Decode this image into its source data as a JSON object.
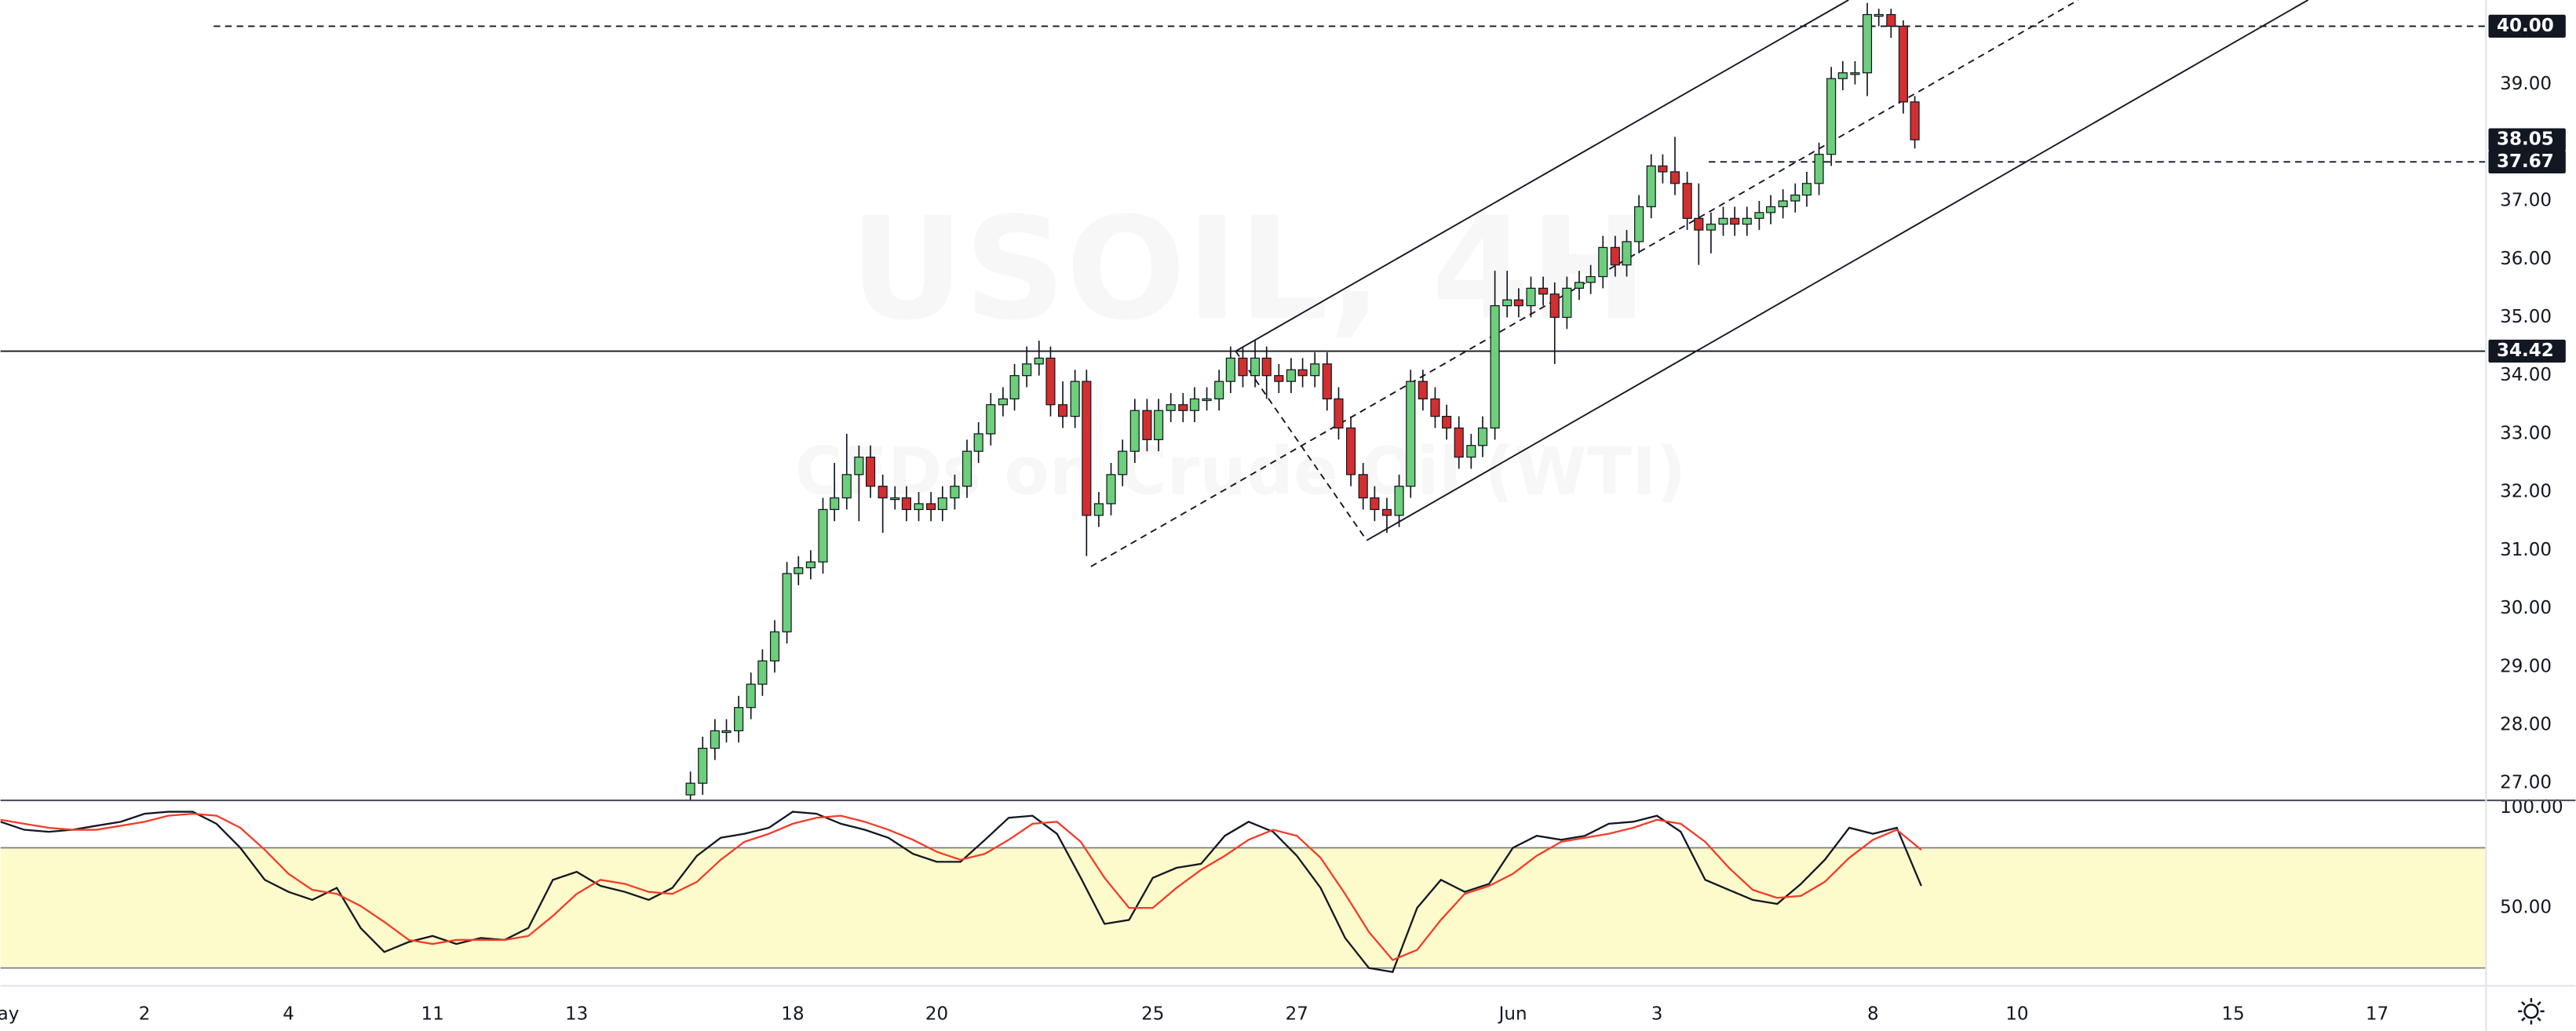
{
  "chart_data": [
    {
      "type": "candlestick",
      "watermark_title": "USOIL, 4H",
      "watermark_subtitle": "CFDs on Crude Oil (WTI)",
      "up_color": "#6ccf7b",
      "down_color": "#d32f2f",
      "x": [
        9.58,
        9.75,
        9.92,
        10.08,
        10.25,
        10.42,
        10.58,
        10.75,
        10.92,
        11.08,
        11.25,
        11.42,
        11.58,
        11.75,
        11.92,
        12.08,
        12.25,
        12.42,
        12.58,
        12.75,
        12.92,
        13.08,
        13.25,
        13.42,
        13.58,
        13.75,
        13.92,
        14.08,
        14.25,
        14.42,
        14.58,
        14.75,
        14.92,
        15.08,
        15.25,
        15.42,
        15.58,
        15.75,
        15.92,
        16.08,
        16.25,
        16.42,
        16.58,
        16.75,
        16.92,
        17.08,
        17.25,
        17.42,
        17.58,
        17.75,
        17.92,
        18.08,
        18.25,
        18.42,
        18.58,
        18.75,
        18.92,
        19.08,
        19.25,
        19.42,
        19.58,
        19.75,
        19.92,
        20.08,
        20.25,
        20.42,
        20.58,
        20.75,
        20.92,
        21.08,
        21.25,
        21.42,
        21.58,
        21.75,
        21.92,
        22.08,
        22.25,
        22.42,
        22.58,
        22.75,
        22.92,
        23.08,
        23.25,
        23.42,
        23.58,
        23.75,
        23.92,
        24.08,
        24.25,
        24.42,
        24.58,
        24.75,
        24.92,
        25.08,
        25.25,
        25.42,
        25.58,
        25.75,
        25.92,
        26.08,
        26.25,
        26.42,
        26.58
      ],
      "open": [
        26.8,
        27.0,
        27.6,
        27.9,
        27.9,
        28.3,
        28.7,
        29.1,
        29.6,
        30.6,
        30.7,
        30.8,
        31.7,
        31.9,
        32.3,
        32.6,
        32.1,
        31.9,
        31.9,
        31.7,
        31.8,
        31.7,
        31.9,
        32.1,
        32.7,
        33.0,
        33.5,
        33.6,
        34.0,
        34.2,
        34.3,
        33.5,
        33.3,
        33.9,
        31.6,
        31.8,
        32.3,
        32.7,
        33.4,
        32.9,
        33.4,
        33.5,
        33.4,
        33.6,
        33.6,
        33.9,
        34.3,
        34.0,
        34.3,
        34.0,
        33.9,
        34.1,
        34.0,
        34.2,
        33.6,
        33.1,
        32.3,
        31.9,
        31.7,
        31.6,
        32.1,
        33.9,
        33.6,
        33.3,
        33.1,
        32.6,
        32.8,
        33.1,
        35.2,
        35.3,
        35.2,
        35.5,
        35.4,
        35.0,
        35.5,
        35.6,
        35.7,
        36.2,
        35.9,
        36.3,
        36.9,
        37.6,
        37.5,
        37.3,
        36.7,
        36.5,
        36.6,
        36.7,
        36.6,
        36.7,
        36.8,
        36.9,
        37.0,
        37.1,
        37.3,
        37.8,
        39.1,
        39.2,
        39.2,
        40.2,
        40.2,
        40.0,
        38.7
      ],
      "high": [
        27.2,
        27.8,
        28.1,
        28.1,
        28.5,
        28.9,
        29.3,
        29.8,
        30.8,
        30.9,
        31.0,
        31.9,
        32.5,
        33.0,
        32.8,
        32.8,
        32.3,
        32.1,
        32.1,
        32.0,
        32.0,
        32.1,
        32.3,
        32.9,
        33.2,
        33.7,
        33.8,
        34.2,
        34.5,
        34.6,
        34.5,
        33.9,
        34.1,
        34.1,
        32.0,
        32.5,
        32.9,
        33.6,
        33.6,
        33.6,
        33.7,
        33.7,
        33.8,
        33.8,
        34.1,
        34.5,
        34.5,
        34.6,
        34.5,
        34.2,
        34.3,
        34.3,
        34.4,
        34.4,
        33.8,
        33.3,
        32.5,
        32.1,
        31.9,
        32.3,
        34.1,
        34.1,
        33.8,
        33.5,
        33.3,
        33.0,
        33.3,
        35.8,
        35.8,
        35.5,
        35.7,
        35.7,
        35.6,
        35.7,
        35.8,
        35.9,
        36.4,
        36.4,
        36.5,
        37.1,
        37.8,
        37.8,
        38.1,
        37.5,
        37.3,
        36.8,
        36.9,
        36.9,
        36.9,
        37.0,
        37.1,
        37.2,
        37.3,
        37.5,
        38.0,
        39.3,
        39.4,
        39.4,
        40.4,
        40.3,
        40.3,
        40.1,
        38.8
      ],
      "low": [
        26.6,
        26.8,
        27.4,
        27.7,
        27.7,
        28.1,
        28.5,
        28.9,
        29.4,
        30.4,
        30.5,
        30.6,
        31.5,
        31.7,
        31.5,
        31.9,
        31.3,
        31.7,
        31.5,
        31.5,
        31.5,
        31.5,
        31.7,
        31.9,
        32.5,
        32.8,
        33.3,
        33.4,
        33.8,
        34.0,
        33.3,
        33.1,
        33.1,
        30.9,
        31.4,
        31.6,
        32.1,
        32.5,
        32.7,
        32.7,
        33.2,
        33.2,
        33.2,
        33.4,
        33.4,
        33.7,
        33.8,
        33.8,
        33.6,
        33.7,
        33.7,
        33.8,
        33.8,
        33.4,
        32.9,
        32.1,
        31.7,
        31.5,
        31.3,
        31.4,
        31.9,
        33.4,
        33.1,
        32.9,
        32.4,
        32.4,
        32.6,
        32.9,
        35.0,
        35.0,
        35.0,
        35.2,
        34.2,
        34.8,
        35.3,
        35.4,
        35.5,
        35.7,
        35.7,
        36.1,
        36.7,
        37.3,
        37.1,
        36.5,
        35.9,
        36.1,
        36.4,
        36.4,
        36.4,
        36.5,
        36.6,
        36.7,
        36.8,
        36.9,
        37.1,
        37.6,
        38.9,
        39.0,
        38.8,
        40.0,
        39.8,
        38.5,
        37.9
      ],
      "close": [
        27.0,
        27.6,
        27.9,
        27.9,
        28.3,
        28.7,
        29.1,
        29.6,
        30.6,
        30.7,
        30.8,
        31.7,
        31.9,
        32.3,
        32.6,
        32.1,
        31.9,
        31.9,
        31.7,
        31.8,
        31.7,
        31.9,
        32.1,
        32.7,
        33.0,
        33.5,
        33.6,
        34.0,
        34.2,
        34.3,
        33.5,
        33.3,
        33.9,
        31.6,
        31.8,
        32.3,
        32.7,
        33.4,
        32.9,
        33.4,
        33.5,
        33.4,
        33.6,
        33.6,
        33.9,
        34.3,
        34.0,
        34.3,
        34.0,
        33.9,
        34.1,
        34.0,
        34.2,
        33.6,
        33.1,
        32.3,
        31.9,
        31.7,
        31.6,
        32.1,
        33.9,
        33.6,
        33.3,
        33.1,
        32.6,
        32.8,
        33.1,
        35.2,
        35.3,
        35.2,
        35.5,
        35.4,
        35.0,
        35.5,
        35.6,
        35.7,
        36.2,
        35.9,
        36.3,
        36.9,
        37.6,
        37.5,
        37.3,
        36.7,
        36.5,
        36.6,
        36.7,
        36.6,
        36.7,
        36.8,
        36.9,
        37.0,
        37.1,
        37.3,
        37.8,
        39.1,
        39.2,
        39.2,
        40.2,
        40.2,
        40.0,
        38.7,
        38.05
      ],
      "xlim": [
        0,
        34.5
      ],
      "ylim": [
        26.72,
        40.45
      ],
      "yticks": [
        {
          "value": 27,
          "label": "27.00"
        },
        {
          "value": 28,
          "label": "28.00"
        },
        {
          "value": 29,
          "label": "29.00"
        },
        {
          "value": 30,
          "label": "30.00"
        },
        {
          "value": 31,
          "label": "31.00"
        },
        {
          "value": 32,
          "label": "32.00"
        },
        {
          "value": 33,
          "label": "33.00"
        },
        {
          "value": 34,
          "label": "34.00"
        },
        {
          "value": 35,
          "label": "35.00"
        },
        {
          "value": 36,
          "label": "36.00"
        },
        {
          "value": 37,
          "label": "37.00"
        },
        {
          "value": 39,
          "label": "39.00"
        }
      ],
      "price_labels": [
        {
          "value": 40,
          "label": "40.00"
        },
        {
          "value": 38.05,
          "label": "38.05"
        },
        {
          "value": 37.67,
          "label": "37.67"
        },
        {
          "value": 34.42,
          "label": "34.42"
        }
      ],
      "drawings": [
        {
          "points": [
            [
              2.96,
              40
            ],
            [
              34.5,
              40
            ]
          ],
          "style": "dashed"
        },
        {
          "points": [
            [
              23.72,
              37.67
            ],
            [
              34.5,
              37.67
            ]
          ],
          "style": "dashed"
        },
        {
          "points": [
            [
              0,
              34.42
            ],
            [
              34.5,
              34.42
            ]
          ],
          "style": "solid"
        },
        {
          "points": [
            [
              17.15,
              34.42
            ],
            [
              25.66,
              40.45
            ]
          ],
          "style": "solid"
        },
        {
          "points": [
            [
              15.14,
              30.72
            ],
            [
              28.85,
              40.45
            ]
          ],
          "style": "dashed"
        },
        {
          "points": [
            [
              18.97,
              31.17
            ],
            [
              32.04,
              40.45
            ]
          ],
          "style": "solid"
        },
        {
          "points": [
            [
              17.15,
              34.42
            ],
            [
              18.97,
              31.17
            ]
          ],
          "style": "dashed"
        }
      ]
    },
    {
      "type": "line",
      "x": [
        0,
        0.33,
        0.67,
        1,
        1.33,
        1.67,
        2,
        2.33,
        2.67,
        3,
        3.33,
        3.67,
        4,
        4.33,
        4.67,
        5,
        5.33,
        5.67,
        6,
        6.33,
        6.67,
        7,
        7.33,
        7.67,
        8,
        8.33,
        8.67,
        9,
        9.33,
        9.67,
        10,
        10.33,
        10.67,
        11,
        11.33,
        11.67,
        12,
        12.33,
        12.67,
        13,
        13.33,
        13.67,
        14,
        14.33,
        14.67,
        15,
        15.33,
        15.67,
        16,
        16.33,
        16.67,
        17,
        17.33,
        17.67,
        18,
        18.33,
        18.67,
        19,
        19.33,
        19.67,
        20,
        20.33,
        20.67,
        21,
        21.33,
        21.67,
        22,
        22.33,
        22.67,
        23,
        23.33,
        23.67,
        24,
        24.33,
        24.67,
        25,
        25.33,
        25.67,
        26,
        26.33,
        26.67
      ],
      "series": [
        {
          "color": "#131722",
          "values": [
            93,
            89,
            88,
            89,
            91,
            93,
            97,
            98,
            98,
            92,
            80,
            64,
            58,
            54,
            60,
            40,
            28,
            33,
            36,
            32,
            35,
            34,
            40,
            64,
            68,
            61,
            58,
            54,
            60,
            76,
            85,
            87,
            90,
            98,
            97,
            92,
            89,
            85,
            77,
            73,
            73,
            84,
            95,
            96,
            87,
            65,
            42,
            44,
            65,
            70,
            72,
            86,
            93,
            88,
            76,
            60,
            35,
            20,
            18,
            50,
            64,
            58,
            62,
            80,
            86,
            84,
            86,
            92,
            93,
            96,
            88,
            64,
            59,
            54,
            52,
            62,
            74,
            90,
            87,
            90,
            61
          ]
        },
        {
          "color": "#f23c2a",
          "values": [
            94,
            92,
            90,
            89,
            89,
            91,
            93,
            96,
            97,
            96,
            90,
            79,
            67,
            59,
            57,
            51,
            43,
            34,
            32,
            34,
            34,
            34,
            36,
            46,
            57,
            64,
            62,
            58,
            57,
            63,
            74,
            83,
            87,
            92,
            95,
            96,
            93,
            89,
            84,
            78,
            74,
            77,
            84,
            92,
            93,
            83,
            65,
            50,
            50,
            60,
            69,
            76,
            84,
            89,
            86,
            75,
            57,
            38,
            24,
            29,
            44,
            57,
            61,
            67,
            76,
            83,
            85,
            87,
            90,
            94,
            92,
            83,
            70,
            59,
            55,
            56,
            63,
            75,
            84,
            89,
            79
          ]
        }
      ],
      "band": [
        20,
        80
      ],
      "band_color": "#fdfbcb",
      "xlim": [
        0,
        34.5
      ],
      "ylim": [
        11.5,
        104.1
      ],
      "yticks": [
        {
          "value": 100,
          "label": "100.00"
        },
        {
          "value": 50,
          "label": "50.00"
        }
      ],
      "xticks": [
        {
          "value": 0,
          "label": "May"
        },
        2,
        4,
        {
          "value": 6,
          "label": "11"
        },
        {
          "value": 8,
          "label": "13"
        },
        {
          "value": 11,
          "label": "18"
        },
        {
          "value": 13,
          "label": "20"
        },
        {
          "value": 16,
          "label": "25"
        },
        {
          "value": 18,
          "label": "27"
        },
        {
          "value": 21,
          "label": "Jun"
        },
        {
          "value": 23,
          "label": "3"
        },
        {
          "value": 26,
          "label": "8"
        },
        {
          "value": 28,
          "label": "10"
        },
        {
          "value": 31,
          "label": "15"
        },
        {
          "value": 33,
          "label": "17"
        }
      ]
    }
  ]
}
